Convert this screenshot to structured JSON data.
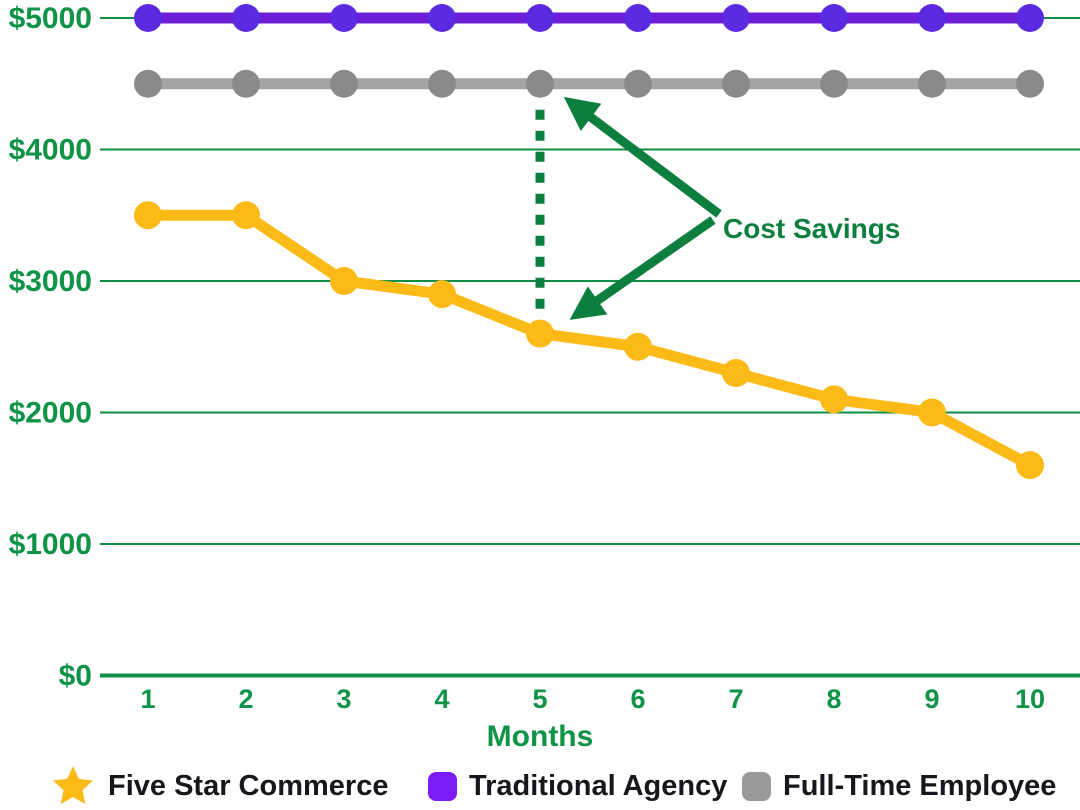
{
  "colors": {
    "background": "#ffffff",
    "axis_green": "#0e9347",
    "grid_green": "#0e8f45",
    "annotation_green": "#0c7f3e",
    "yellow": "#fbba16",
    "purple_line": "#6c1ed9",
    "purple_marker": "#5a2be0",
    "gray_line": "#a4a4a4",
    "gray_marker": "#8a8a8a",
    "legend_purple": "#7b1bf5",
    "legend_gray": "#999999",
    "legend_text": "#15171c"
  },
  "chart_data": {
    "type": "line",
    "title": "",
    "xlabel": "Months",
    "ylabel": "",
    "ylim": [
      0,
      5000
    ],
    "grid": true,
    "legend_position": "bottom",
    "x": [
      1,
      2,
      3,
      4,
      5,
      6,
      7,
      8,
      9,
      10
    ],
    "x_tick_labels": [
      "1",
      "2",
      "3",
      "4",
      "5",
      "6",
      "7",
      "8",
      "9",
      "10"
    ],
    "y_ticks": [
      {
        "label": "$5000",
        "value": 5000
      },
      {
        "label": "$4000",
        "value": 4000
      },
      {
        "label": "$3000",
        "value": 3000
      },
      {
        "label": "$2000",
        "value": 2000
      },
      {
        "label": "$1000",
        "value": 1000
      },
      {
        "label": "$0",
        "value": 0
      }
    ],
    "series": [
      {
        "name": "Traditional Agency",
        "color_key": "purple_line",
        "marker_color_key": "purple_marker",
        "values": [
          5000,
          5000,
          5000,
          5000,
          5000,
          5000,
          5000,
          5000,
          5000,
          5000
        ]
      },
      {
        "name": "Full-Time Employee",
        "color_key": "gray_line",
        "marker_color_key": "gray_marker",
        "values": [
          4500,
          4500,
          4500,
          4500,
          4500,
          4500,
          4500,
          4500,
          4500,
          4500
        ]
      },
      {
        "name": "Five Star Commerce",
        "color_key": "yellow",
        "marker_color_key": "yellow",
        "values": [
          3500,
          3500,
          3000,
          2900,
          2600,
          2500,
          2300,
          2100,
          2000,
          1600
        ]
      }
    ],
    "annotation": {
      "label": "Cost Savings",
      "target_month": 5,
      "between_series": [
        "Full-Time Employee",
        "Five Star Commerce"
      ]
    }
  },
  "legend": {
    "items": [
      {
        "label": "Five Star Commerce",
        "swatch": "star",
        "color_key": "yellow"
      },
      {
        "label": "Traditional Agency",
        "swatch": "square",
        "color_key": "legend_purple"
      },
      {
        "label": "Full-Time Employee",
        "swatch": "square",
        "color_key": "legend_gray"
      }
    ]
  }
}
